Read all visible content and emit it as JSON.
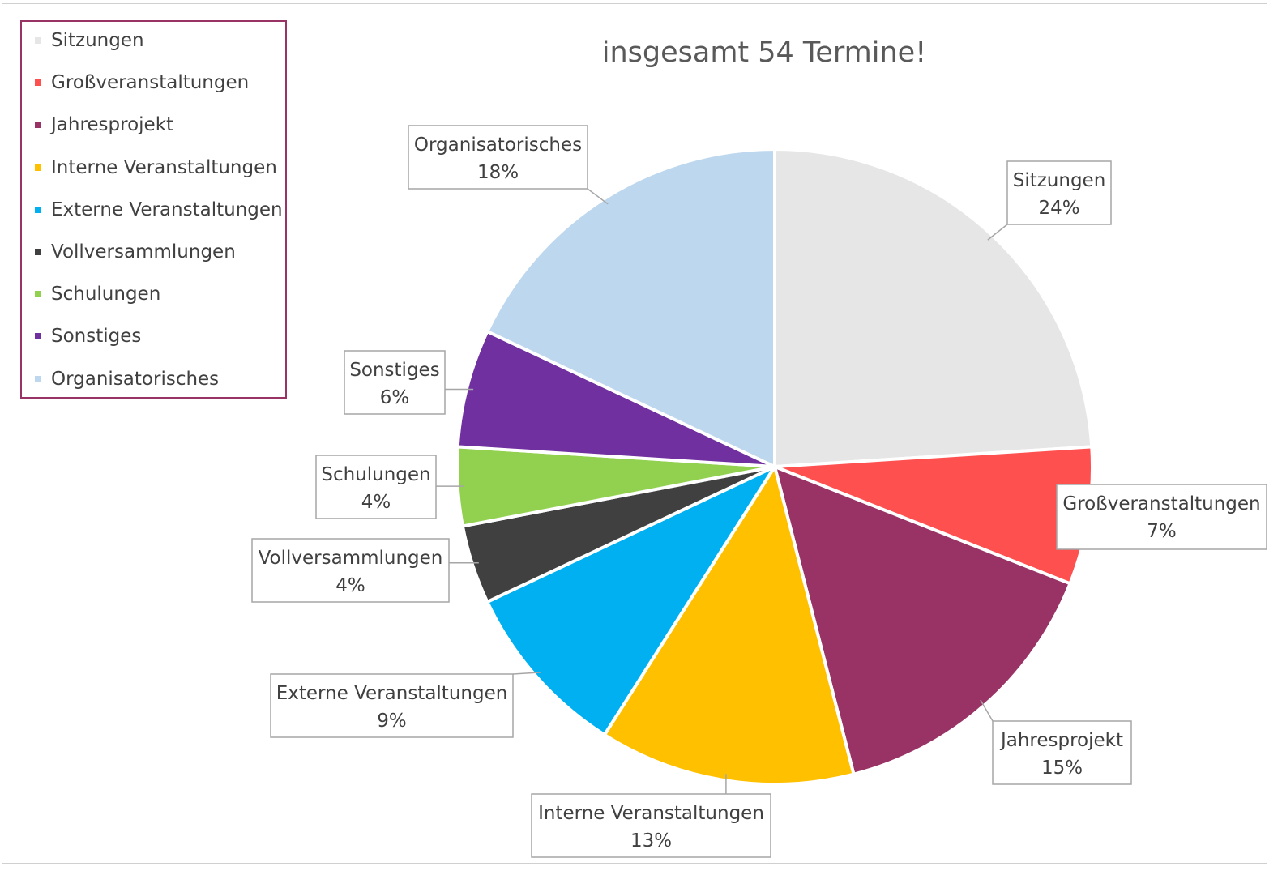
{
  "chart_data": {
    "type": "pie",
    "title": "insgesamt 54 Termine!",
    "legend_position": "top-left",
    "slices": [
      {
        "label": "Sitzungen",
        "percent_label": "24%",
        "value": 24,
        "color": "#E7E6E6"
      },
      {
        "label": "Großveranstaltungen",
        "percent_label": "7%",
        "value": 7,
        "color": "#FF5050"
      },
      {
        "label": "Jahresprojekt",
        "percent_label": "15%",
        "value": 15,
        "color": "#993366"
      },
      {
        "label": "Interne Veranstaltungen",
        "percent_label": "13%",
        "value": 13,
        "color": "#FFC000"
      },
      {
        "label": "Externe Veranstaltungen",
        "percent_label": "9%",
        "value": 9,
        "color": "#00B0F0"
      },
      {
        "label": "Vollversammlungen",
        "percent_label": "4%",
        "value": 4,
        "color": "#404040"
      },
      {
        "label": "Schulungen",
        "percent_label": "4%",
        "value": 4,
        "color": "#92D050"
      },
      {
        "label": "Sonstiges",
        "percent_label": "6%",
        "value": 6,
        "color": "#7030A0"
      },
      {
        "label": "Organisatorisches",
        "percent_label": "18%",
        "value": 18,
        "color": "#BDD7EE"
      }
    ]
  }
}
